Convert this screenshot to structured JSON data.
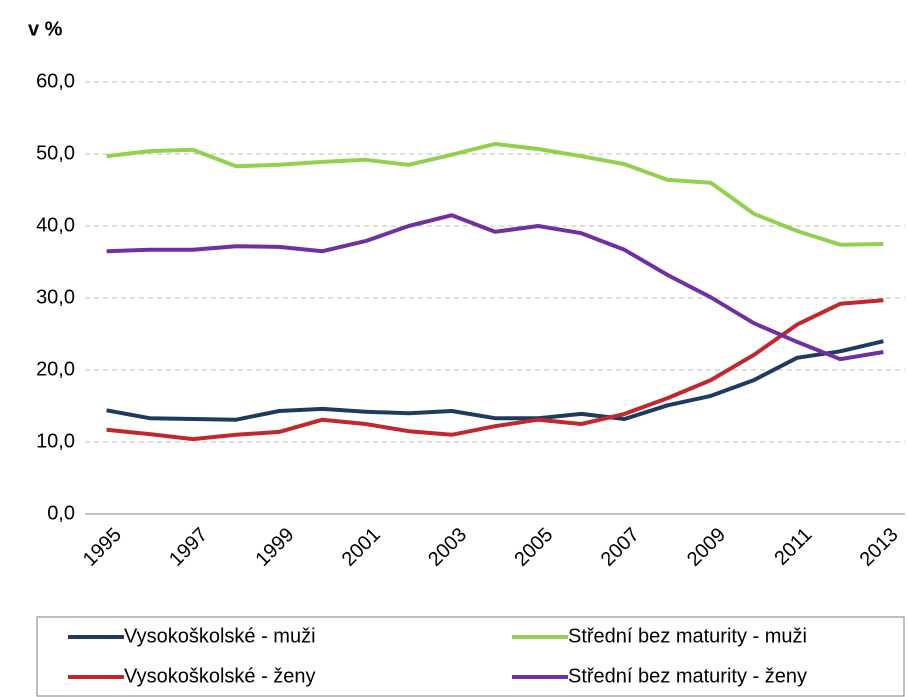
{
  "chart_data": {
    "type": "line",
    "ylabel": "v %",
    "categories": [
      "1995",
      null,
      "1997",
      null,
      "1999",
      null,
      "2001",
      null,
      "2003",
      null,
      "2005",
      null,
      "2007",
      null,
      "2009",
      null,
      "2011",
      null,
      "2013"
    ],
    "series": [
      {
        "name": "Vysokoškolské - muži",
        "color": "#1f3a5f",
        "values": [
          14.4,
          13.3,
          13.2,
          13.1,
          14.3,
          14.6,
          14.2,
          14.0,
          14.3,
          13.3,
          13.3,
          13.9,
          13.2,
          15.1,
          16.4,
          18.6,
          21.7,
          22.6,
          24.0
        ]
      },
      {
        "name": "Střední bez maturity - muži",
        "color": "#92d050",
        "values": [
          49.7,
          50.4,
          50.6,
          48.3,
          48.5,
          48.9,
          49.2,
          48.5,
          49.9,
          51.4,
          50.7,
          49.7,
          48.6,
          46.4,
          46.0,
          41.7,
          39.3,
          37.4,
          37.5
        ]
      },
      {
        "name": "Vysokoškolské - ženy",
        "color": "#c0282e",
        "values": [
          11.7,
          11.1,
          10.4,
          11.0,
          11.4,
          13.1,
          12.5,
          11.5,
          11.0,
          12.2,
          13.1,
          12.5,
          13.9,
          16.1,
          18.6,
          22.1,
          26.3,
          29.2,
          29.7
        ]
      },
      {
        "name": "Střední bez maturity - ženy",
        "color": "#7030a0",
        "values": [
          36.5,
          36.7,
          36.7,
          37.2,
          37.1,
          36.5,
          37.9,
          40.0,
          41.5,
          39.2,
          40.0,
          39.0,
          36.7,
          33.2,
          30.1,
          26.5,
          23.9,
          21.5,
          22.5
        ]
      }
    ],
    "ylim": [
      0,
      60
    ],
    "yticks": [
      {
        "value": 0,
        "label": "0,0"
      },
      {
        "value": 10,
        "label": "10,0"
      },
      {
        "value": 20,
        "label": "20,0"
      },
      {
        "value": 30,
        "label": "30,0"
      },
      {
        "value": 40,
        "label": "40,0"
      },
      {
        "value": 50,
        "label": "50,0"
      },
      {
        "value": 60,
        "label": "60,0"
      }
    ],
    "grid": true
  }
}
